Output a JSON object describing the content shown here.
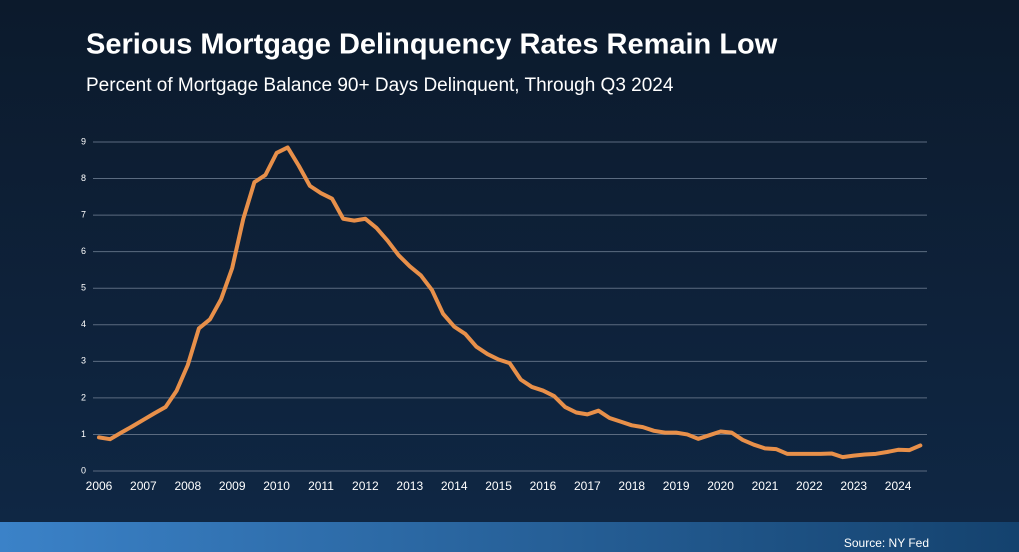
{
  "chart_data": {
    "type": "line",
    "title": "Serious Mortgage Delinquency Rates Remain Low",
    "subtitle": "Percent of Mortgage Balance 90+ Days Delinquent, Through Q3 2024",
    "source": "Source: NY Fed",
    "color": "#e8904a",
    "x": [
      2006,
      2006.25,
      2006.5,
      2006.75,
      2007,
      2007.25,
      2007.5,
      2007.75,
      2008,
      2008.25,
      2008.5,
      2008.75,
      2009,
      2009.25,
      2009.5,
      2009.75,
      2010,
      2010.25,
      2010.5,
      2010.75,
      2011,
      2011.25,
      2011.5,
      2011.75,
      2012,
      2012.25,
      2012.5,
      2012.75,
      2013,
      2013.25,
      2013.5,
      2013.75,
      2014,
      2014.25,
      2014.5,
      2014.75,
      2015,
      2015.25,
      2015.5,
      2015.75,
      2016,
      2016.25,
      2016.5,
      2016.75,
      2017,
      2017.25,
      2017.5,
      2017.75,
      2018,
      2018.25,
      2018.5,
      2018.75,
      2019,
      2019.25,
      2019.5,
      2019.75,
      2020,
      2020.25,
      2020.5,
      2020.75,
      2021,
      2021.25,
      2021.5,
      2021.75,
      2022,
      2022.25,
      2022.5,
      2022.75,
      2023,
      2023.25,
      2023.5,
      2023.75,
      2024,
      2024.25,
      2024.5
    ],
    "values": [
      0.92,
      0.87,
      1.05,
      1.22,
      1.4,
      1.58,
      1.75,
      2.2,
      2.9,
      3.9,
      4.15,
      4.7,
      5.55,
      6.9,
      7.9,
      8.1,
      8.7,
      8.85,
      8.35,
      7.8,
      7.6,
      7.45,
      6.9,
      6.85,
      6.9,
      6.65,
      6.3,
      5.9,
      5.6,
      5.35,
      4.95,
      4.3,
      3.95,
      3.75,
      3.4,
      3.2,
      3.05,
      2.95,
      2.5,
      2.3,
      2.2,
      2.05,
      1.75,
      1.6,
      1.55,
      1.65,
      1.45,
      1.35,
      1.25,
      1.2,
      1.1,
      1.05,
      1.05,
      1.0,
      0.88,
      0.98,
      1.08,
      1.05,
      0.85,
      0.72,
      0.62,
      0.6,
      0.47,
      0.47,
      0.47,
      0.47,
      0.48,
      0.38,
      0.42,
      0.45,
      0.47,
      0.52,
      0.58,
      0.57,
      0.7
    ],
    "xlim": [
      2006,
      2024.65
    ],
    "xticks": [
      2006,
      2007,
      2008,
      2009,
      2010,
      2011,
      2012,
      2013,
      2014,
      2015,
      2016,
      2017,
      2018,
      2019,
      2020,
      2021,
      2022,
      2023,
      2024
    ],
    "ylim": [
      0,
      9
    ],
    "yticks": [
      0,
      1,
      2,
      3,
      4,
      5,
      6,
      7,
      8,
      9
    ],
    "grid": true
  }
}
